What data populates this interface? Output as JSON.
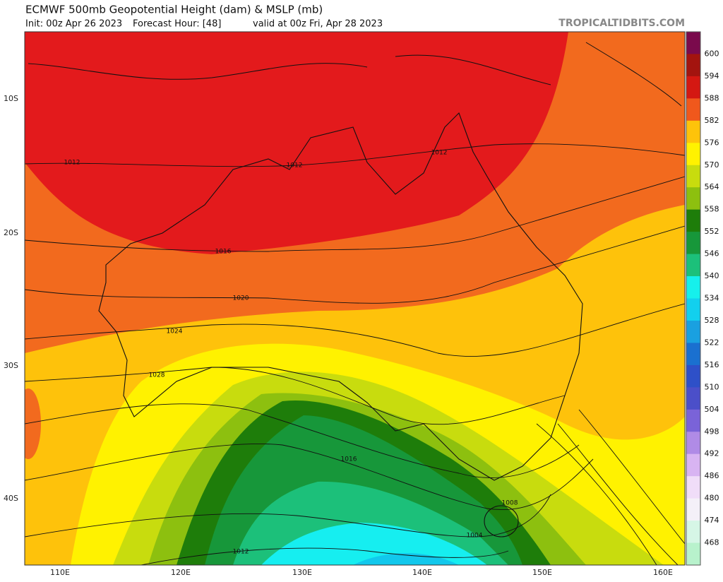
{
  "header": {
    "title": "ECMWF 500mb Geopotential Height (dam) & MSLP (mb)",
    "init": "Init: 00z Apr 26 2023",
    "forecast_hour": "Forecast Hour: [48]",
    "valid": "valid at 00z Fri, Apr 28 2023",
    "watermark": "TROPICALTIDBITS.COM"
  },
  "map": {
    "lat_labels": [
      "10S",
      "20S",
      "30S",
      "40S"
    ],
    "lon_labels": [
      "110E",
      "120E",
      "130E",
      "140E",
      "150E",
      "160E"
    ],
    "isobar_labels": [
      "1012",
      "1012",
      "1012",
      "1016",
      "1020",
      "1024",
      "1028",
      "1016",
      "1008",
      "1004",
      "1012"
    ]
  },
  "colorbar": {
    "labels": [
      "600",
      "594",
      "588",
      "582",
      "576",
      "570",
      "564",
      "558",
      "552",
      "546",
      "540",
      "534",
      "528",
      "522",
      "516",
      "510",
      "504",
      "498",
      "492",
      "486",
      "480",
      "474",
      "468"
    ]
  }
}
